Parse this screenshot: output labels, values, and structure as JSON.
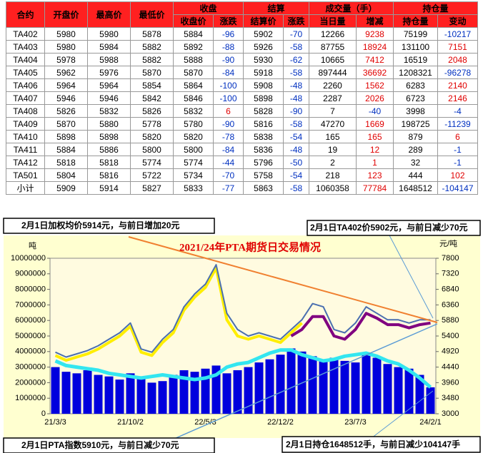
{
  "table": {
    "header_top": [
      "合约",
      "开盘价",
      "最高价",
      "最低价",
      "收盘",
      "结算",
      "成交量（手）",
      "持仓量"
    ],
    "header_sub": [
      "收盘价",
      "涨跌",
      "结算价",
      "涨跌",
      "当日量",
      "增减",
      "持仓量",
      "变动"
    ],
    "rows": [
      [
        "TA402",
        "5980",
        "5980",
        "5878",
        "5884",
        "-96",
        "5902",
        "-70",
        "12266",
        "9238",
        "75199",
        "-10217"
      ],
      [
        "TA403",
        "5980",
        "5984",
        "5882",
        "5892",
        "-88",
        "5926",
        "-58",
        "87755",
        "18924",
        "131100",
        "7151"
      ],
      [
        "TA404",
        "5978",
        "5988",
        "5882",
        "5888",
        "-90",
        "5930",
        "-62",
        "10665",
        "7412",
        "16519",
        "2048"
      ],
      [
        "TA405",
        "5962",
        "5976",
        "5870",
        "5870",
        "-84",
        "5918",
        "-58",
        "897444",
        "36692",
        "1208321",
        "-96278"
      ],
      [
        "TA406",
        "5964",
        "5964",
        "5854",
        "5864",
        "-100",
        "5908",
        "-48",
        "2260",
        "1562",
        "6283",
        "2140"
      ],
      [
        "TA407",
        "5946",
        "5946",
        "5842",
        "5846",
        "-100",
        "5898",
        "-48",
        "2287",
        "2026",
        "6723",
        "2146"
      ],
      [
        "TA408",
        "5826",
        "5832",
        "5826",
        "5832",
        "6",
        "5828",
        "-90",
        "7",
        "-40",
        "3998",
        "-4"
      ],
      [
        "TA409",
        "5870",
        "5880",
        "5778",
        "5780",
        "-90",
        "5816",
        "-58",
        "47270",
        "1669",
        "198725",
        "-11239"
      ],
      [
        "TA410",
        "5898",
        "5898",
        "5820",
        "5820",
        "-78",
        "5838",
        "-54",
        "165",
        "165",
        "879",
        "6"
      ],
      [
        "TA411",
        "5884",
        "5886",
        "5800",
        "5800",
        "-84",
        "5836",
        "-48",
        "19",
        "12",
        "289",
        "-1"
      ],
      [
        "TA412",
        "5818",
        "5818",
        "5774",
        "5774",
        "-44",
        "5796",
        "-50",
        "2",
        "1",
        "32",
        "-1"
      ],
      [
        "TA501",
        "5804",
        "5816",
        "5722",
        "5734",
        "-70",
        "5758",
        "-54",
        "218",
        "123",
        "444",
        "102"
      ],
      [
        "小计",
        "5909",
        "5914",
        "5827",
        "5833",
        "-77",
        "5863",
        "-58",
        "1060358",
        "77784",
        "1648512",
        "-104147"
      ]
    ]
  },
  "chart_data": {
    "type": "combo",
    "title": "2021/24年PTA期货日交易情况",
    "y_label": "吨",
    "y2_label": "元/吨",
    "annotations": [
      "2月1日加权均价5914元，与前日增加20元",
      "2月1日TA402价5902元，与前日减少70元",
      "2月1日PTA指数5910元，与前日减少70元",
      "2月1日持仓1648512手，与前日减少104147手"
    ],
    "categories": [
      "21/3/3",
      null,
      null,
      null,
      null,
      null,
      null,
      "21/10/2",
      null,
      null,
      null,
      null,
      null,
      null,
      "22/5/3",
      null,
      null,
      null,
      null,
      null,
      null,
      "22/12/2",
      null,
      null,
      null,
      null,
      null,
      null,
      "23/7/3",
      null,
      null,
      null,
      null,
      null,
      null,
      "24/2/1"
    ],
    "ylim": [
      0,
      10000000
    ],
    "yticks": [
      0,
      1000000,
      2000000,
      3000000,
      4000000,
      5000000,
      6000000,
      7000000,
      8000000,
      9000000,
      10000000
    ],
    "y2lim": [
      3000,
      7800
    ],
    "y2ticks": [
      3000,
      3480,
      3960,
      4440,
      4920,
      5400,
      5880,
      6360,
      6840,
      7320,
      7800
    ],
    "series": [
      {
        "kind": "bar",
        "color": "#0000dd",
        "values": [
          3000000,
          2700000,
          2600000,
          2800000,
          2500000,
          2400000,
          2200000,
          2600000,
          2300000,
          2000000,
          2100000,
          2500000,
          2800000,
          2700000,
          2900000,
          3100000,
          2600000,
          2800000,
          3000000,
          3300000,
          3500000,
          3800000,
          4200000,
          4000000,
          3700000,
          3500000,
          3600000,
          3400000,
          3300000,
          3800000,
          3600000,
          3200000,
          3000000,
          2900000,
          2500000,
          1700000
        ]
      },
      {
        "kind": "line",
        "color": "#33e6f0",
        "width": 5,
        "values": [
          3400000,
          3100000,
          3000000,
          2900000,
          2800000,
          2600000,
          2500000,
          2400000,
          2300000,
          2400000,
          2500000,
          2400000,
          2300000,
          2200000,
          2300000,
          2500000,
          3000000,
          3200000,
          3300000,
          3600000,
          3900000,
          4100000,
          4100000,
          3800000,
          3600000,
          3400000,
          3500000,
          3700000,
          3800000,
          3900000,
          3700000,
          3400000,
          3200000,
          2800000,
          2300000,
          1700000
        ]
      },
      {
        "kind": "line",
        "axis": "y2",
        "color": "#ffee00",
        "width": 4,
        "values": [
          4800,
          4650,
          4750,
          4850,
          5000,
          5200,
          5400,
          5700,
          4900,
          4800,
          5200,
          5500,
          6200,
          6600,
          6900,
          7500,
          5900,
          5400,
          5300,
          5400,
          5300,
          5200,
          5500,
          5800,
          null,
          null,
          null,
          null,
          null,
          null,
          null,
          null,
          null,
          null,
          null,
          null
        ]
      },
      {
        "kind": "line",
        "axis": "y2",
        "color": "#800080",
        "width": 4,
        "values": [
          null,
          null,
          null,
          null,
          null,
          null,
          null,
          null,
          null,
          null,
          null,
          null,
          null,
          null,
          null,
          null,
          null,
          null,
          null,
          null,
          null,
          null,
          5400,
          5600,
          6000,
          6000,
          5400,
          5300,
          5600,
          6100,
          5950,
          5750,
          5750,
          5650,
          5750,
          5800
        ]
      },
      {
        "kind": "line",
        "axis": "y2",
        "color": "#4a6fb0",
        "width": 2,
        "values": [
          4900,
          4750,
          4850,
          4950,
          5100,
          5300,
          5500,
          5800,
          5000,
          4900,
          5300,
          5600,
          6300,
          6700,
          7000,
          7600,
          6100,
          5600,
          5400,
          5500,
          5400,
          5300,
          5600,
          5900,
          6400,
          6300,
          5600,
          5500,
          5800,
          6300,
          6100,
          5900,
          5900,
          5800,
          5900,
          5902
        ]
      }
    ]
  }
}
